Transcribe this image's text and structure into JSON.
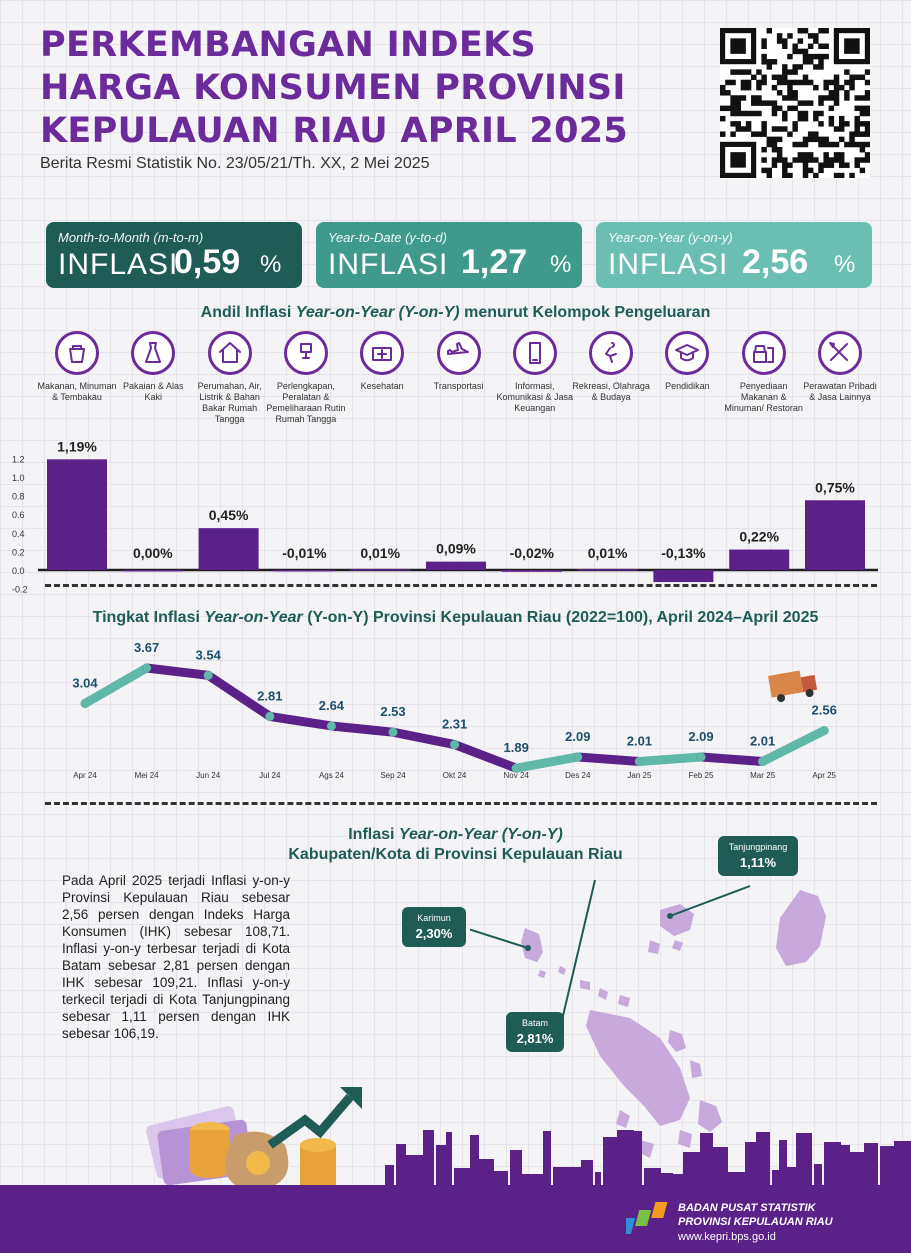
{
  "header": {
    "title_lines": [
      "PERKEMBANGAN INDEKS",
      "HARGA KONSUMEN PROVINSI",
      "KEPULAUAN RIAU APRIL 2025"
    ],
    "subtitle": "Berita Resmi Statistik No. 23/05/21/Th. XX, 2 Mei 2025"
  },
  "cards": [
    {
      "label": "Month-to-Month (m-to-m)",
      "prefix": "INFLASI",
      "value": "0,59",
      "unit": "%",
      "color": "#1e5c55"
    },
    {
      "label": "Year-to-Date (y-to-d)",
      "prefix": "INFLASI",
      "value": "1,27",
      "unit": "%",
      "color": "#3f9a8c"
    },
    {
      "label": "Year-on-Year (y-on-y)",
      "prefix": "INFLASI",
      "value": "2,56",
      "unit": "%",
      "color": "#6bbfb2"
    }
  ],
  "bar_section_title": {
    "pre": "Andil Inflasi ",
    "em": "Year-on-Year (Y-on-Y)",
    "post": " menurut Kelompok Pengeluaran"
  },
  "categories": [
    {
      "label": "Makanan, Minuman & Tembakau",
      "icon": "grocery-bag-icon"
    },
    {
      "label": "Pakaian & Alas Kaki",
      "icon": "dress-icon"
    },
    {
      "label": "Perumahan, Air, Listrik & Bahan Bakar Rumah Tangga",
      "icon": "house-icon"
    },
    {
      "label": "Perlengkapan, Peralatan & Pemeliharaan Rutin Rumah Tangga",
      "icon": "iron-icon"
    },
    {
      "label": "Kesehatan",
      "icon": "first-aid-kit-icon"
    },
    {
      "label": "Transportasi",
      "icon": "airplane-icon"
    },
    {
      "label": "Informasi, Komunikasi & Jasa Keuangan",
      "icon": "smartphone-icon"
    },
    {
      "label": "Rekreasi, Olahraga & Budaya",
      "icon": "soccer-player-icon"
    },
    {
      "label": "Pendidikan",
      "icon": "graduation-cap-icon"
    },
    {
      "label": "Penyediaan Makanan & Minuman/ Restoran",
      "icon": "fast-food-icon"
    },
    {
      "label": "Perawatan Pribadi & Jasa Lainnya",
      "icon": "tools-icon"
    }
  ],
  "line_section_title": {
    "pre": "Tingkat Inflasi ",
    "em": "Year-on-Year",
    "post": " (Y-on-Y) Provinsi Kepulauan Riau (2022=100), April 2024–April 2025"
  },
  "map_section_title": {
    "line1_pre": "Inflasi ",
    "line1_em": "Year-on-Year (Y-on-Y)",
    "line2": "Kabupaten/Kota di Provinsi Kepulauan Riau"
  },
  "summary_text": "Pada April 2025 terjadi Inflasi y-on-y Provinsi Kepulauan Riau sebesar 2,56 persen dengan Indeks Harga Konsumen (IHK) sebesar 108,71. Inflasi y-on-y terbesar terjadi di Kota Batam sebesar 2,81 persen dengan IHK sebesar 109,21. Inflasi y-on-y terkecil terjadi di Kota Tanjungpinang sebesar 1,11 persen dengan IHK sebesar 106,19.",
  "map_regions": [
    {
      "name": "Tanjungpinang",
      "value": "1,11%"
    },
    {
      "name": "Karimun",
      "value": "2,30%"
    },
    {
      "name": "Batam",
      "value": "2,81%"
    }
  ],
  "footer": {
    "org_line1": "BADAN PUSAT STATISTIK",
    "org_line2": "PROVINSI KEPULAUAN RIAU",
    "url": "www.kepri.bps.go.id"
  },
  "colors": {
    "purple": "#6b2b9a",
    "bar_purple": "#5b2188",
    "teal": "#3f9a8c",
    "dark_teal": "#1e5c55",
    "light_teal": "#5fb8a8"
  },
  "chart_data": [
    {
      "type": "bar",
      "categories": [
        "Makanan, Minuman & Tembakau",
        "Pakaian & Alas Kaki",
        "Perumahan, Air, Listrik & Bahan Bakar Rumah Tangga",
        "Perlengkapan, Peralatan & Pemeliharaan Rutin Rumah Tangga",
        "Kesehatan",
        "Transportasi",
        "Informasi, Komunikasi & Jasa Keuangan",
        "Rekreasi, Olahraga & Budaya",
        "Pendidikan",
        "Penyediaan Makanan & Minuman/ Restoran",
        "Perawatan Pribadi & Jasa Lainnya"
      ],
      "values": [
        1.19,
        0.0,
        0.45,
        -0.01,
        0.01,
        0.09,
        -0.02,
        0.01,
        -0.13,
        0.22,
        0.75
      ],
      "data_labels": [
        "1,19%",
        "0,00%",
        "0,45%",
        "-0,01%",
        "0,01%",
        "0,09%",
        "-0,02%",
        "0,01%",
        "-0,13%",
        "0,22%",
        "0,75%"
      ],
      "yticks": [
        "1.2",
        "1.0",
        "0.8",
        "0.6",
        "0.4",
        "0.2",
        "0.0",
        "-0.2"
      ],
      "ytick_values": [
        1.2,
        1.0,
        0.8,
        0.6,
        0.4,
        0.2,
        0.0,
        -0.2
      ],
      "ylim": [
        -0.2,
        1.2
      ],
      "title": "Andil Inflasi Year-on-Year (Y-on-Y) menurut Kelompok Pengeluaran",
      "grid": false
    },
    {
      "type": "line",
      "x": [
        "Apr 24",
        "Mei 24",
        "Jun 24",
        "Jul 24",
        "Ags 24",
        "Sep 24",
        "Okt 24",
        "Nov 24",
        "Des 24",
        "Jan 25",
        "Feb 25",
        "Mar 25",
        "Apr 25"
      ],
      "values": [
        3.04,
        3.67,
        3.54,
        2.81,
        2.64,
        2.53,
        2.31,
        1.89,
        2.09,
        2.01,
        2.09,
        2.01,
        2.56
      ],
      "data_labels": [
        "3.04",
        "3.67",
        "3.54",
        "2.81",
        "2.64",
        "2.53",
        "2.31",
        "1.89",
        "2.09",
        "2.01",
        "2.09",
        "2.01",
        "2.56"
      ],
      "title": "Tingkat Inflasi Year-on-Year (Y-on-Y) Provinsi Kepulauan Riau (2022=100), April 2024–April 2025",
      "grid": false
    }
  ]
}
